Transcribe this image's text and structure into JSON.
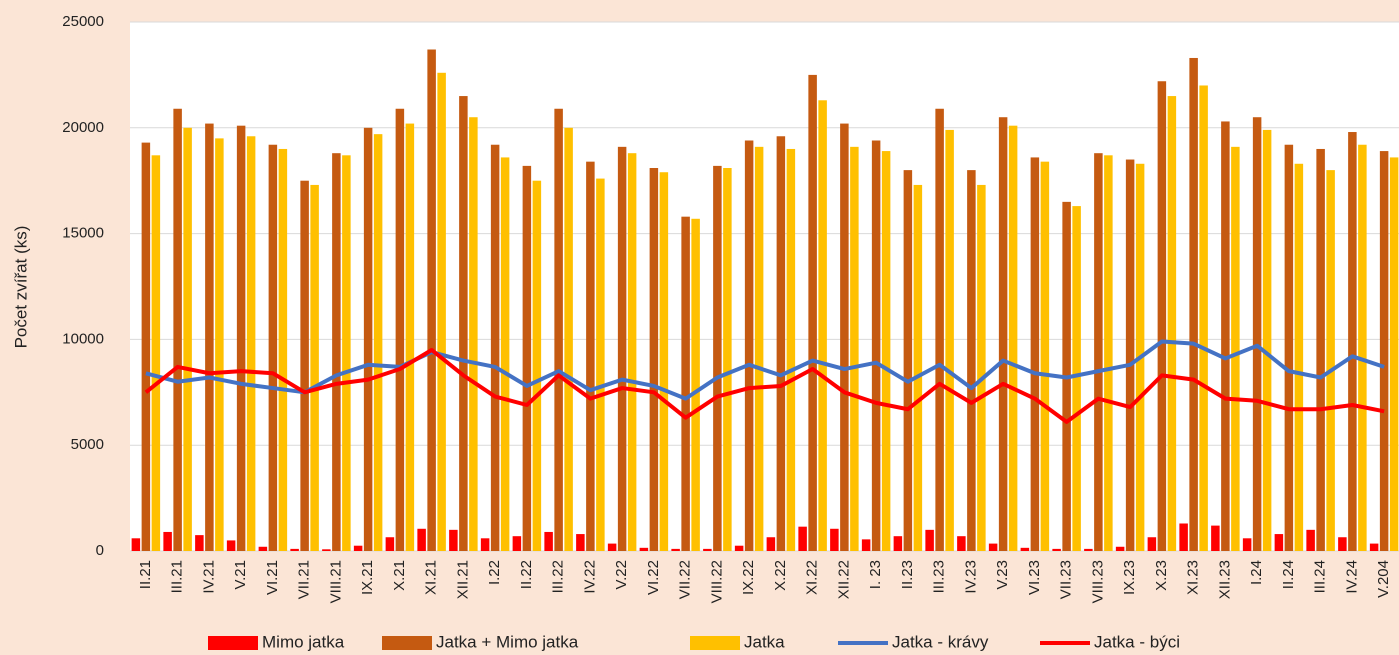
{
  "chart_data": {
    "type": "bar",
    "y_label": "Počet zvířat (ks)",
    "categories": [
      "II.21",
      "III.21",
      "IV.21",
      "V.21",
      "VI.21",
      "VII.21",
      "VIII.21",
      "IX.21",
      "X.21",
      "XI.21",
      "XII.21",
      "I.22",
      "II.22",
      "III.22",
      "IV.22",
      "V.22",
      "VI.22",
      "VII.22",
      "VIII.22",
      "IX.22",
      "X.22",
      "XI.22",
      "XII.22",
      "I. 23",
      "II.23",
      "III.23",
      "IV.23",
      "V.23",
      "VI.23",
      "VII.23",
      "VIII.23",
      "IX.23",
      "X.23",
      "XI.23",
      "XII.23",
      "I.24",
      "II.24",
      "III.24",
      "IV.24",
      "V.204"
    ],
    "series": [
      {
        "name": "Mimo jatka",
        "type": "bar",
        "color": "#ff0000",
        "values": [
          600,
          900,
          750,
          500,
          200,
          100,
          80,
          250,
          650,
          1050,
          1000,
          600,
          700,
          900,
          800,
          350,
          150,
          100,
          100,
          250,
          650,
          1150,
          1050,
          550,
          700,
          1000,
          700,
          350,
          150,
          100,
          100,
          200,
          650,
          1300,
          1200,
          600,
          800,
          1000,
          650,
          350
        ]
      },
      {
        "name": "Jatka + Mimo jatka",
        "type": "bar",
        "color": "#c55a11",
        "values": [
          19300,
          20900,
          20200,
          20100,
          19200,
          17500,
          18800,
          20000,
          20900,
          23700,
          21500,
          19200,
          18200,
          20900,
          18400,
          19100,
          18100,
          15800,
          18200,
          19400,
          19600,
          22500,
          20200,
          19400,
          18000,
          20900,
          18000,
          20500,
          18600,
          16500,
          18800,
          18500,
          22200,
          23300,
          20300,
          20500,
          19200,
          19000,
          19800,
          18900
        ]
      },
      {
        "name": "Jatka",
        "type": "bar",
        "color": "#ffc000",
        "values": [
          18700,
          20000,
          19500,
          19600,
          19000,
          17300,
          18700,
          19700,
          20200,
          22600,
          20500,
          18600,
          17500,
          20000,
          17600,
          18800,
          17900,
          15700,
          18100,
          19100,
          19000,
          21300,
          19100,
          18900,
          17300,
          19900,
          17300,
          20100,
          18400,
          16300,
          18700,
          18300,
          21500,
          22000,
          19100,
          19900,
          18300,
          18000,
          19200,
          18600
        ]
      },
      {
        "name": "Jatka - krávy",
        "type": "line",
        "color": "#4472c4",
        "values": [
          8400,
          8000,
          8200,
          7900,
          7700,
          7500,
          8300,
          8800,
          8700,
          9400,
          9000,
          8700,
          7800,
          8500,
          7600,
          8100,
          7800,
          7200,
          8200,
          8800,
          8300,
          9000,
          8600,
          8900,
          8000,
          8800,
          7700,
          9000,
          8400,
          8200,
          8500,
          8800,
          9900,
          9800,
          9100,
          9700,
          8500,
          8200,
          9200,
          8700
        ]
      },
      {
        "name": "Jatka - býci",
        "type": "line",
        "color": "#ff0000",
        "values": [
          7500,
          8700,
          8400,
          8500,
          8400,
          7500,
          7900,
          8100,
          8600,
          9500,
          8300,
          7300,
          6900,
          8300,
          7200,
          7700,
          7500,
          6300,
          7300,
          7700,
          7800,
          8600,
          7500,
          7000,
          6700,
          7900,
          7000,
          7900,
          7200,
          6100,
          7200,
          6800,
          8300,
          8100,
          7200,
          7100,
          6700,
          6700,
          6900,
          6600
        ]
      }
    ],
    "ylim": [
      0,
      25000
    ],
    "yticks": [
      0,
      5000,
      10000,
      15000,
      20000,
      25000
    ],
    "grid": true,
    "legend": "bottom"
  }
}
